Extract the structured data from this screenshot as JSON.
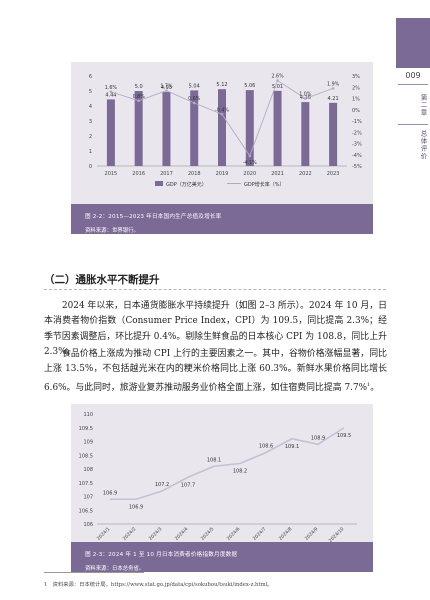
{
  "side": {
    "page_number": "009",
    "chapter": "第二章",
    "title": "总体评价"
  },
  "fig1": {
    "caption": "图 2-2：2015—2023 年日本国内生产总值及增长率",
    "source": "资料来源：世界银行。",
    "legend_gdp": "GDP（万亿美元）",
    "legend_growth": "GDP增长率（%）"
  },
  "section": {
    "heading": "（二）通胀水平不断提升"
  },
  "paragraphs": {
    "p1": "2024 年以来，日本通货膨胀水平持续提升（如图 2–3 所示）。2024 年 10 月，日本消费者物价指数（Consumer Price Index，CPI）为 109.5，同比提高 2.3%；经季节因素调整后，环比提升 0.4%。剔除生鲜食品的日本核心 CPI 为 108.8，同比上升 2.3%。",
    "p2": "食品价格上涨成为推动 CPI 上行的主要因素之一。其中，谷物价格涨幅显著，同比上涨 13.5%，不包括越光米在内的粳米价格同比上涨 60.3%。新鲜水果价格同比增长 6.6%。与此同时，旅游业复苏推动服务业价格全面上涨，如住宿费同比提高 7.7%",
    "p2_note": "1"
  },
  "fig2": {
    "caption": "图 2-3：2024 年 1 至 10 月日本消费者价格指数月度数据",
    "source": "资料来源：日本总务省。"
  },
  "footnote": {
    "text": "1　资料来源：日本统计局，https://www.stat.go.jp/data/cpi/sokuhou/tsuki/index-z.html。"
  },
  "chart_data": [
    {
      "type": "bar",
      "categories": [
        "2015",
        "2016",
        "2017",
        "2018",
        "2019",
        "2020",
        "2021",
        "2022",
        "2023"
      ],
      "series": [
        {
          "name": "GDP（万亿美元）",
          "type": "bar",
          "axis": "left",
          "values": [
            4.44,
            5.0,
            4.93,
            5.04,
            5.12,
            5.06,
            5.01,
            4.26,
            4.21
          ],
          "labels": [
            "4.44",
            "5.0",
            "4.93",
            "5.04",
            "5.12",
            "5.06",
            "5.01",
            "4.26",
            "4.21"
          ]
        },
        {
          "name": "GDP增长率（%）",
          "type": "line",
          "axis": "right",
          "values": [
            1.6,
            0.8,
            1.7,
            0.6,
            -0.4,
            -4.1,
            2.6,
            1.0,
            1.9
          ],
          "labels": [
            "1.6%",
            "0.8%",
            "1.7%",
            "0.6%",
            "-0.4%",
            "-4.1%",
            "2.6%",
            "1.0%",
            "1.9%"
          ]
        }
      ],
      "left_axis": {
        "ticks": [
          "0",
          "1",
          "2",
          "3",
          "4",
          "5",
          "6"
        ],
        "ylim": [
          0,
          6
        ]
      },
      "right_axis": {
        "ticks": [
          "-5%",
          "-4%",
          "-3%",
          "-2%",
          "-1%",
          "0%",
          "1%",
          "2%",
          "3%"
        ],
        "ylim": [
          -5,
          3
        ]
      },
      "colors": {
        "bar": "#7b6a96",
        "line": "#b3a9c6"
      },
      "legend_position": "bottom",
      "grid": false
    },
    {
      "type": "line",
      "categories": [
        "2024/1",
        "2024/2",
        "2024/3",
        "2024/4",
        "2024/5",
        "2024/6",
        "2024/7",
        "2024/8",
        "2024/9",
        "2024/10"
      ],
      "values": [
        106.9,
        106.9,
        107.2,
        107.7,
        108.1,
        108.2,
        108.6,
        109.1,
        108.9,
        109.5
      ],
      "labels": [
        "106.9",
        "106.9",
        "107.2",
        "107.7",
        "108.1",
        "108.2",
        "108.6",
        "109.1",
        "108.9",
        "109.5"
      ],
      "y_ticks": [
        "106",
        "106.5",
        "107",
        "107.5",
        "108",
        "108.5",
        "109",
        "109.5",
        "110"
      ],
      "ylim": [
        106,
        110
      ],
      "color": "#c7bfd8",
      "grid": false
    }
  ]
}
